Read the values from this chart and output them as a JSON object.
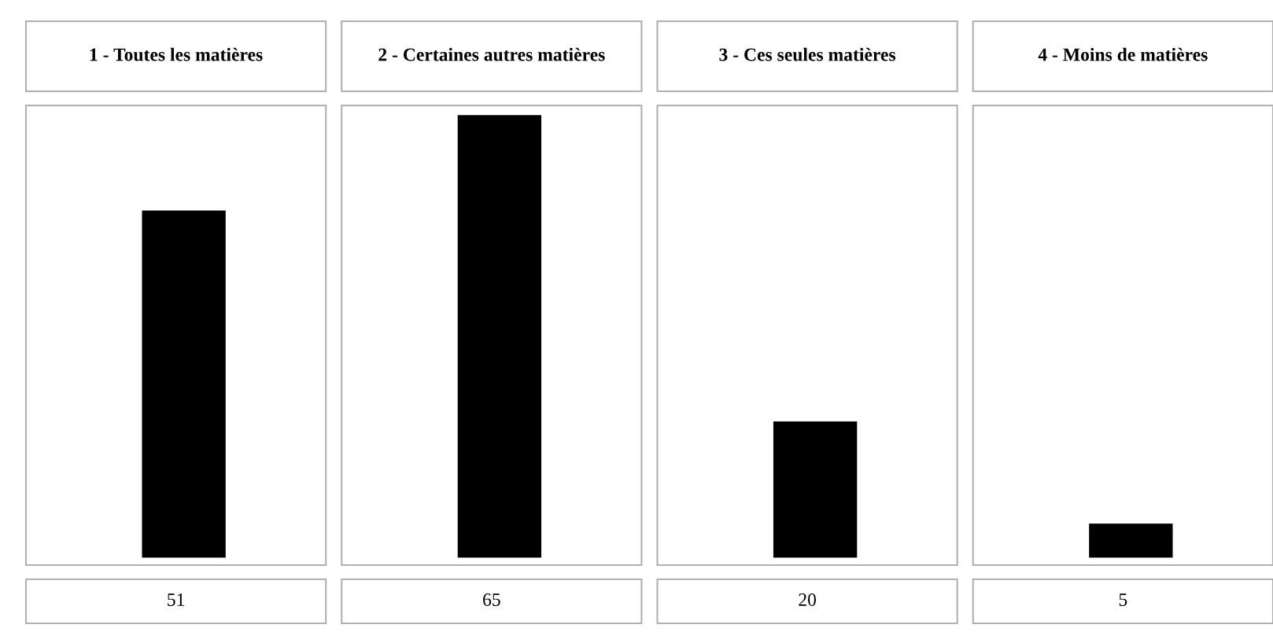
{
  "chart_data": {
    "type": "bar",
    "categories": [
      "1 - Toutes les matières",
      "2 - Certaines autres matières",
      "3 - Ces seules matières",
      "4 - Moins de matières"
    ],
    "values": [
      51,
      65,
      20,
      5
    ],
    "color": "#000000",
    "data_labels": true
  }
}
